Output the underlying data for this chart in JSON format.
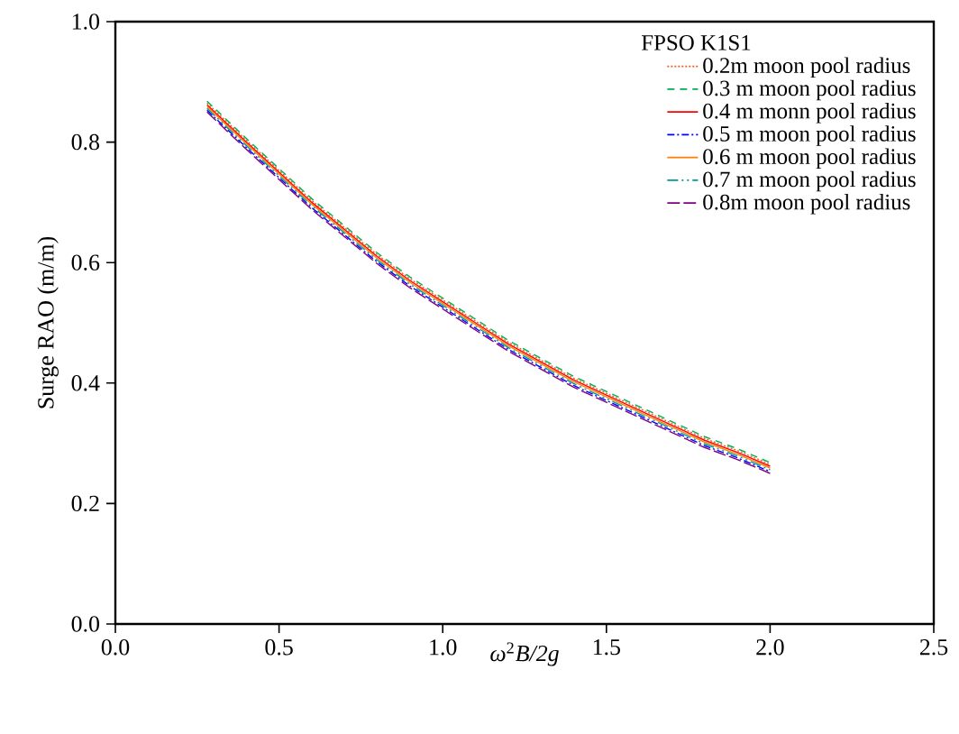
{
  "chart_data": {
    "type": "line",
    "xlabel": "*ω*$^{2}$*B/2g*",
    "ylabel": "Surge RAO (m/m)",
    "legend_title": "FPSO K1S1",
    "legend": "top right",
    "grid": false,
    "xlim": [
      0,
      2.5
    ],
    "ylim": [
      0,
      1.0
    ],
    "xticks": [
      {
        "value": 0,
        "label": "0.0"
      },
      {
        "value": 0.5,
        "label": "0.5"
      },
      {
        "value": 1.0,
        "label": "1.0"
      },
      {
        "value": 1.5,
        "label": "1.5"
      },
      {
        "value": 2.0,
        "label": "2.0"
      },
      {
        "value": 2.5,
        "label": "2.5"
      }
    ],
    "yticks": [
      {
        "value": 0,
        "label": "0.0"
      },
      {
        "value": 0.2,
        "label": "0.2"
      },
      {
        "value": 0.4,
        "label": "0.4"
      },
      {
        "value": 0.6,
        "label": "0.6"
      },
      {
        "value": 0.8,
        "label": "0.8"
      },
      {
        "value": 1.0,
        "label": "1.0"
      }
    ],
    "x": [
      0.28,
      0.4,
      0.5,
      0.6,
      0.7,
      0.8,
      0.9,
      1.0,
      1.1,
      1.2,
      1.3,
      1.4,
      1.5,
      1.6,
      1.7,
      1.8,
      1.9,
      2.0
    ],
    "series": [
      {
        "name": "0.2m moon pool radius",
        "color": "#e8602c",
        "line_style": "dotted",
        "values": [
          0.865,
          0.803,
          0.753,
          0.703,
          0.658,
          0.613,
          0.573,
          0.538,
          0.503,
          0.468,
          0.438,
          0.408,
          0.383,
          0.358,
          0.333,
          0.308,
          0.288,
          0.265
        ]
      },
      {
        "name": "0.3 m moon pool radius",
        "color": "#00b050",
        "line_style": "dashed",
        "values": [
          0.868,
          0.806,
          0.756,
          0.706,
          0.661,
          0.616,
          0.576,
          0.541,
          0.506,
          0.471,
          0.441,
          0.411,
          0.386,
          0.361,
          0.336,
          0.311,
          0.291,
          0.268
        ]
      },
      {
        "name": "0.4 m monn pool radius",
        "color": "#ff0000",
        "line_style": "solid",
        "values": [
          0.862,
          0.8,
          0.75,
          0.7,
          0.655,
          0.61,
          0.57,
          0.535,
          0.5,
          0.465,
          0.435,
          0.405,
          0.38,
          0.355,
          0.33,
          0.305,
          0.285,
          0.262
        ]
      },
      {
        "name": "0.5 m moon pool radius",
        "color": "#0000ff",
        "line_style": "dashdot",
        "values": [
          0.853,
          0.791,
          0.741,
          0.691,
          0.646,
          0.601,
          0.561,
          0.526,
          0.491,
          0.456,
          0.426,
          0.396,
          0.371,
          0.346,
          0.321,
          0.296,
          0.276,
          0.253
        ]
      },
      {
        "name": "0.6 m moon pool radius",
        "color": "#ff7f00",
        "line_style": "solid",
        "values": [
          0.859,
          0.797,
          0.747,
          0.697,
          0.652,
          0.607,
          0.567,
          0.532,
          0.497,
          0.462,
          0.432,
          0.402,
          0.377,
          0.352,
          0.327,
          0.302,
          0.282,
          0.259
        ]
      },
      {
        "name": "0.7 m moon pool radius",
        "color": "#009999",
        "line_style": "dashdotdot",
        "values": [
          0.856,
          0.794,
          0.744,
          0.694,
          0.649,
          0.604,
          0.564,
          0.529,
          0.494,
          0.459,
          0.429,
          0.399,
          0.374,
          0.349,
          0.324,
          0.299,
          0.279,
          0.256
        ]
      },
      {
        "name": "0.8m moon pool radius",
        "color": "#800080",
        "line_style": "longdashed",
        "values": [
          0.85,
          0.788,
          0.738,
          0.688,
          0.643,
          0.598,
          0.558,
          0.523,
          0.488,
          0.453,
          0.423,
          0.393,
          0.368,
          0.343,
          0.318,
          0.293,
          0.273,
          0.25
        ]
      }
    ]
  }
}
